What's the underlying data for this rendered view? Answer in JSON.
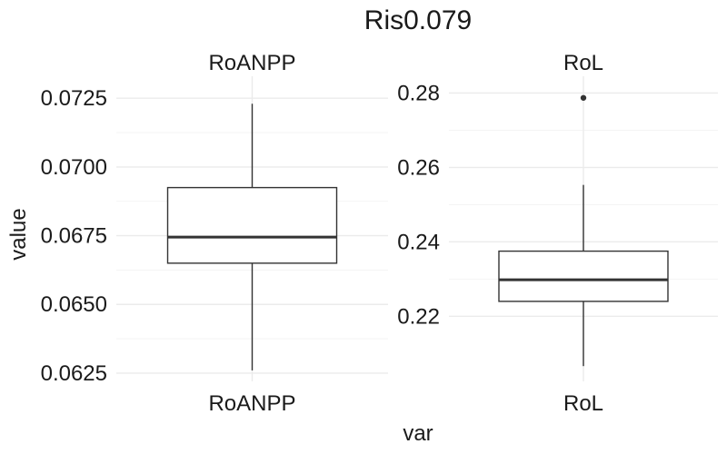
{
  "chart_data": {
    "type": "boxplot",
    "title": "Ris0.079",
    "xlabel": "var",
    "ylabel": "value",
    "facets": [
      {
        "strip": "RoANPP",
        "category": "RoANPP",
        "ylim": [
          0.0622,
          0.0733
        ],
        "yticks": [
          0.0625,
          0.065,
          0.0675,
          0.07,
          0.0725
        ],
        "ytick_labels": [
          "0.0625",
          "0.0650",
          "0.0675",
          "0.0700",
          "0.0725"
        ],
        "box": {
          "min": 0.0626,
          "q1": 0.0665,
          "median": 0.06745,
          "q3": 0.06925,
          "max": 0.0723
        },
        "outliers": []
      },
      {
        "strip": "RoL",
        "category": "RoL",
        "ylim": [
          0.2025,
          0.2845
        ],
        "yticks": [
          0.22,
          0.24,
          0.26,
          0.28
        ],
        "ytick_labels": [
          "0.22",
          "0.24",
          "0.26",
          "0.28"
        ],
        "box": {
          "min": 0.2066,
          "q1": 0.224,
          "median": 0.2298,
          "q3": 0.2375,
          "max": 0.2553
        },
        "outliers": [
          0.2787
        ]
      }
    ],
    "grid": true
  }
}
